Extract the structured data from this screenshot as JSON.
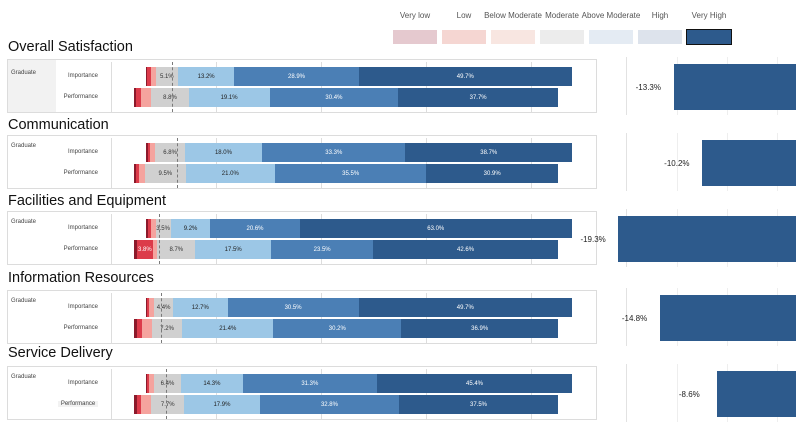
{
  "legend": {
    "items": [
      {
        "label": "Very low",
        "color": "#e5c9cf"
      },
      {
        "label": "Low",
        "color": "#f5d6d2"
      },
      {
        "label": "Below Moderate",
        "color": "#f8e6e1"
      },
      {
        "label": "Moderate",
        "color": "#ececec"
      },
      {
        "label": "Above Moderate",
        "color": "#e4ebf3"
      },
      {
        "label": "High",
        "color": "#dde3ec"
      },
      {
        "label": "Very High",
        "color": "#2d5a8c",
        "selected": true
      }
    ]
  },
  "chart_data": {
    "type": "bar",
    "orientation": "horizontal",
    "stacked": true,
    "categories": [
      "Very low",
      "Low",
      "Below Moderate",
      "Moderate",
      "Above Moderate",
      "High",
      "Very High"
    ],
    "colors": {
      "bar": [
        "#8b1a2b",
        "#dc3b4a",
        "#f5a39e",
        "#d0d0d0",
        "#9cc7e6",
        "#4b7fb5",
        "#2d5a8c"
      ],
      "label": [
        "#ffffff",
        "#ffffff",
        "#333333",
        "#333333",
        "#222222",
        "#ffffff",
        "#ffffff"
      ]
    },
    "sections": [
      {
        "title": "Overall Satisfaction",
        "group": "Graduate",
        "rows": [
          {
            "label": "Importance",
            "values": [
              0.3,
              0.8,
              1.2,
              5.1,
              13.2,
              28.9,
              49.7
            ],
            "labels": [
              "",
              "",
              "",
              "5.1%",
              "13.2%",
              "28.9%",
              "49.7%"
            ]
          },
          {
            "label": "Performance",
            "values": [
              0.5,
              1.2,
              2.4,
              8.8,
              19.1,
              30.4,
              37.7
            ],
            "labels": [
              "",
              "",
              "",
              "8.8%",
              "19.1%",
              "30.4%",
              "37.7%"
            ]
          }
        ],
        "gap": {
          "value": -13.3,
          "label": "-13.3%"
        }
      },
      {
        "title": "Communication",
        "group": "Graduate",
        "rows": [
          {
            "label": "Importance",
            "values": [
              0.4,
              0.6,
              1.2,
              6.8,
              18.0,
              33.3,
              38.7
            ],
            "labels": [
              "",
              "",
              "",
              "6.8%",
              "18.0%",
              "33.3%",
              "38.7%"
            ]
          },
          {
            "label": "Performance",
            "values": [
              0.4,
              0.7,
              1.5,
              9.5,
              21.0,
              35.5,
              30.9
            ],
            "labels": [
              "",
              "",
              "",
              "9.5%",
              "21.0%",
              "35.5%",
              "30.9%"
            ]
          }
        ],
        "gap": {
          "value": -10.2,
          "label": "-10.2%"
        }
      },
      {
        "title": "Facilities and Equipment",
        "group": "Graduate",
        "rows": [
          {
            "label": "Importance",
            "values": [
              0.4,
              0.8,
              1.0,
              3.5,
              9.2,
              20.6,
              63.0
            ],
            "labels": [
              "",
              "",
              "",
              "3.5%",
              "9.2%",
              "20.6%",
              "63.0%"
            ]
          },
          {
            "label": "Performance",
            "values": [
              0.6,
              3.8,
              1.0,
              8.7,
              17.5,
              23.5,
              42.6
            ],
            "labels": [
              "",
              "3.8%",
              "",
              "8.7%",
              "17.5%",
              "23.5%",
              "42.6%"
            ]
          }
        ],
        "gap": {
          "value": -19.3,
          "label": "-19.3%"
        }
      },
      {
        "title": "Information Resources",
        "group": "Graduate",
        "rows": [
          {
            "label": "Importance",
            "values": [
              0.3,
              0.5,
              1.1,
              4.4,
              12.7,
              30.5,
              49.7
            ],
            "labels": [
              "",
              "",
              "",
              "4.4%",
              "12.7%",
              "30.5%",
              "49.7%"
            ]
          },
          {
            "label": "Performance",
            "values": [
              0.8,
              1.0,
              2.4,
              7.2,
              21.4,
              30.2,
              36.9
            ],
            "labels": [
              "",
              "",
              "",
              "7.2%",
              "21.4%",
              "30.2%",
              "36.9%"
            ]
          }
        ],
        "gap": {
          "value": -14.8,
          "label": "-14.8%"
        }
      },
      {
        "title": "Service Delivery",
        "group": "Graduate",
        "rows": [
          {
            "label": "Importance",
            "values": [
              0.3,
              0.5,
              1.0,
              6.4,
              14.3,
              31.3,
              45.4
            ],
            "labels": [
              "",
              "",
              "",
              "6.4%",
              "14.3%",
              "31.3%",
              "45.4%"
            ]
          },
          {
            "label": "Performance",
            "values": [
              0.7,
              1.0,
              2.4,
              7.7,
              17.9,
              32.8,
              37.5
            ],
            "labels": [
              "",
              "",
              "",
              "7.7%",
              "17.9%",
              "32.8%",
              "37.5%"
            ]
          }
        ],
        "gap": {
          "value": -8.6,
          "label": "-8.6%"
        }
      }
    ]
  }
}
